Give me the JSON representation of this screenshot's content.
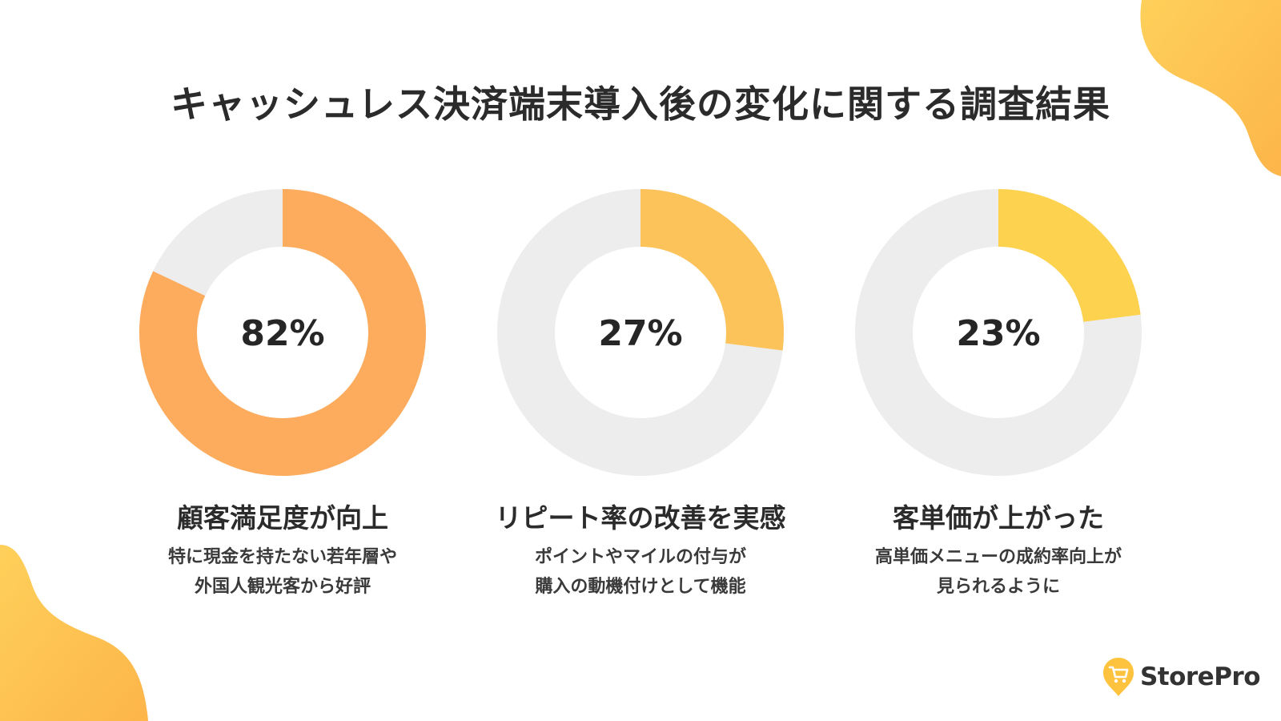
{
  "colors": {
    "track": "#ededed",
    "accent_1": "#fdab5c",
    "accent_2": "#fdc35b",
    "accent_3": "#fdd24e",
    "blob": "#fec048",
    "text": "#262626"
  },
  "title": "キャッシュレス決済端末導入後の変化に関する調査結果",
  "chart_data": [
    {
      "type": "pie",
      "value": 82,
      "max": 100,
      "label": "82%",
      "caption_title": "顧客満足度が向上",
      "caption_lines": [
        "特に現金を持たない若年層や",
        "外国人観光客から好評"
      ],
      "color": "#fdab5c"
    },
    {
      "type": "pie",
      "value": 27,
      "max": 100,
      "label": "27%",
      "caption_title": "リピート率の改善を実感",
      "caption_lines": [
        "ポイントやマイルの付与が",
        "購入の動機付けとして機能"
      ],
      "color": "#fdc35b"
    },
    {
      "type": "pie",
      "value": 23,
      "max": 100,
      "label": "23%",
      "caption_title": "客単価が上がった",
      "caption_lines": [
        "高単価メニューの成約率向上が",
        "見られるように"
      ],
      "color": "#fdd24e"
    }
  ],
  "brand": {
    "name": "StorePro",
    "icon": "cart-pin-icon"
  }
}
